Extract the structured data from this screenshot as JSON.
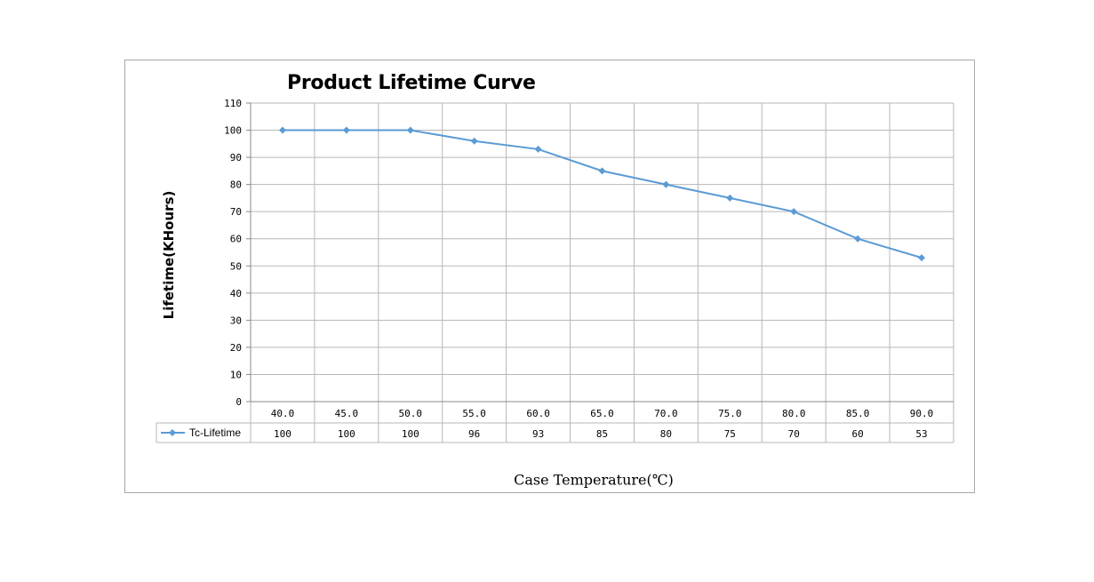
{
  "chart_data": {
    "type": "line",
    "title": "Product Lifetime Curve",
    "xlabel": "Case Temperature(℃)",
    "ylabel": "Lifetime(KHours)",
    "categories": [
      "40.0",
      "45.0",
      "50.0",
      "55.0",
      "60.0",
      "65.0",
      "70.0",
      "75.0",
      "80.0",
      "85.0",
      "90.0"
    ],
    "series": [
      {
        "name": "Tc-Lifetime",
        "values": [
          100,
          100,
          100,
          96,
          93,
          85,
          80,
          75,
          70,
          60,
          53
        ],
        "color": "#5b9bd5"
      }
    ],
    "ylim": [
      0,
      110
    ],
    "yticks": [
      0,
      10,
      20,
      30,
      40,
      50,
      60,
      70,
      80,
      90,
      100,
      110
    ],
    "grid": true,
    "legend": "data-table"
  }
}
